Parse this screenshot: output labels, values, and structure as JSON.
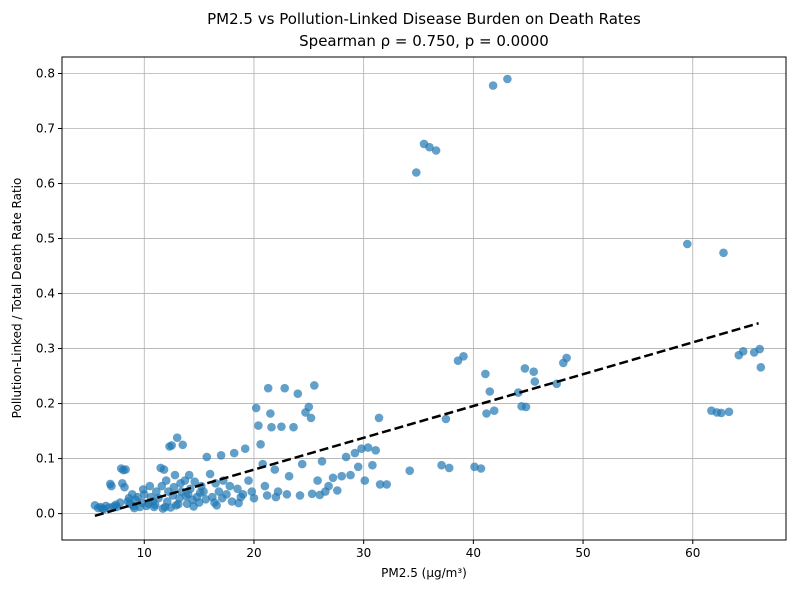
{
  "chart_data": {
    "type": "scatter",
    "title": "PM2.5 vs Pollution-Linked Disease Burden on Death Rates",
    "subtitle": "Spearman ρ = 0.750, p = 0.0000",
    "xlabel": "PM2.5 (µg/m³)",
    "ylabel": "Pollution-Linked / Total Death Rate Ratio",
    "xlim": [
      2.5,
      68.5
    ],
    "ylim": [
      -0.048,
      0.83
    ],
    "xticks": [
      10,
      20,
      30,
      40,
      50,
      60
    ],
    "yticks": [
      0.0,
      0.1,
      0.2,
      0.3,
      0.4,
      0.5,
      0.6,
      0.7,
      0.8
    ],
    "xtick_labels": [
      "10",
      "20",
      "30",
      "40",
      "50",
      "60"
    ],
    "ytick_labels": [
      "0.0",
      "0.1",
      "0.2",
      "0.3",
      "0.4",
      "0.5",
      "0.6",
      "0.7",
      "0.8"
    ],
    "grid": true,
    "point_color": "#1f77b4",
    "trend_color": "#000000",
    "trend_line": {
      "x": [
        5.5,
        66.0
      ],
      "y": [
        -0.004,
        0.346
      ]
    },
    "points": [
      [
        5.5,
        0.015
      ],
      [
        5.8,
        0.01
      ],
      [
        6.0,
        0.012
      ],
      [
        6.3,
        0.008
      ],
      [
        6.5,
        0.014
      ],
      [
        6.8,
        0.011
      ],
      [
        7.0,
        0.05
      ],
      [
        6.9,
        0.054
      ],
      [
        7.2,
        0.013
      ],
      [
        7.5,
        0.012
      ],
      [
        7.8,
        0.02
      ],
      [
        7.9,
        0.082
      ],
      [
        8.1,
        0.079
      ],
      [
        8.3,
        0.08
      ],
      [
        8.0,
        0.055
      ],
      [
        8.2,
        0.048
      ],
      [
        8.5,
        0.022
      ],
      [
        8.7,
        0.018
      ],
      [
        8.9,
        0.035
      ],
      [
        9.0,
        0.014
      ],
      [
        9.2,
        0.025
      ],
      [
        9.4,
        0.03
      ],
      [
        9.6,
        0.012
      ],
      [
        9.8,
        0.02
      ],
      [
        10.0,
        0.035
      ],
      [
        10.2,
        0.014
      ],
      [
        10.4,
        0.018
      ],
      [
        10.6,
        0.03
      ],
      [
        10.8,
        0.022
      ],
      [
        11.0,
        0.016
      ],
      [
        11.1,
        0.04
      ],
      [
        11.3,
        0.028
      ],
      [
        11.5,
        0.083
      ],
      [
        11.6,
        0.05
      ],
      [
        11.8,
        0.08
      ],
      [
        11.9,
        0.012
      ],
      [
        12.0,
        0.06
      ],
      [
        12.1,
        0.022
      ],
      [
        12.3,
        0.122
      ],
      [
        12.5,
        0.124
      ],
      [
        12.6,
        0.033
      ],
      [
        12.7,
        0.048
      ],
      [
        12.8,
        0.07
      ],
      [
        12.9,
        0.015
      ],
      [
        13.0,
        0.138
      ],
      [
        13.2,
        0.028
      ],
      [
        13.4,
        0.04
      ],
      [
        13.5,
        0.125
      ],
      [
        13.7,
        0.06
      ],
      [
        13.9,
        0.018
      ],
      [
        14.0,
        0.035
      ],
      [
        14.2,
        0.045
      ],
      [
        14.4,
        0.025
      ],
      [
        14.6,
        0.058
      ],
      [
        14.8,
        0.03
      ],
      [
        15.0,
        0.02
      ],
      [
        15.2,
        0.05
      ],
      [
        15.4,
        0.04
      ],
      [
        15.7,
        0.103
      ],
      [
        16.0,
        0.072
      ],
      [
        16.2,
        0.03
      ],
      [
        16.5,
        0.055
      ],
      [
        16.8,
        0.04
      ],
      [
        17.0,
        0.106
      ],
      [
        17.2,
        0.06
      ],
      [
        17.5,
        0.035
      ],
      [
        17.8,
        0.05
      ],
      [
        18.2,
        0.11
      ],
      [
        18.5,
        0.045
      ],
      [
        18.8,
        0.03
      ],
      [
        19.2,
        0.118
      ],
      [
        19.5,
        0.06
      ],
      [
        19.8,
        0.04
      ],
      [
        20.2,
        0.192
      ],
      [
        20.4,
        0.16
      ],
      [
        20.6,
        0.126
      ],
      [
        20.8,
        0.09
      ],
      [
        21.0,
        0.05
      ],
      [
        21.3,
        0.228
      ],
      [
        21.5,
        0.182
      ],
      [
        21.6,
        0.157
      ],
      [
        21.9,
        0.08
      ],
      [
        22.2,
        0.04
      ],
      [
        22.5,
        0.158
      ],
      [
        22.8,
        0.228
      ],
      [
        23.2,
        0.068
      ],
      [
        23.6,
        0.157
      ],
      [
        24.0,
        0.218
      ],
      [
        24.4,
        0.09
      ],
      [
        24.7,
        0.184
      ],
      [
        25.0,
        0.194
      ],
      [
        25.2,
        0.174
      ],
      [
        25.5,
        0.233
      ],
      [
        25.8,
        0.06
      ],
      [
        26.2,
        0.095
      ],
      [
        26.5,
        0.04
      ],
      [
        26.8,
        0.05
      ],
      [
        27.2,
        0.065
      ],
      [
        27.6,
        0.042
      ],
      [
        28.0,
        0.068
      ],
      [
        28.4,
        0.103
      ],
      [
        28.8,
        0.07
      ],
      [
        29.2,
        0.11
      ],
      [
        29.5,
        0.085
      ],
      [
        29.8,
        0.118
      ],
      [
        30.1,
        0.06
      ],
      [
        30.4,
        0.12
      ],
      [
        30.8,
        0.088
      ],
      [
        31.1,
        0.115
      ],
      [
        31.4,
        0.174
      ],
      [
        31.5,
        0.053
      ],
      [
        32.1,
        0.053
      ],
      [
        34.2,
        0.078
      ],
      [
        34.8,
        0.62
      ],
      [
        35.5,
        0.672
      ],
      [
        36.0,
        0.666
      ],
      [
        36.6,
        0.66
      ],
      [
        37.1,
        0.088
      ],
      [
        37.5,
        0.172
      ],
      [
        37.8,
        0.083
      ],
      [
        38.6,
        0.278
      ],
      [
        39.1,
        0.286
      ],
      [
        40.1,
        0.085
      ],
      [
        40.7,
        0.082
      ],
      [
        41.1,
        0.254
      ],
      [
        41.2,
        0.182
      ],
      [
        41.5,
        0.222
      ],
      [
        41.9,
        0.187
      ],
      [
        41.8,
        0.778
      ],
      [
        43.1,
        0.79
      ],
      [
        44.1,
        0.22
      ],
      [
        44.4,
        0.195
      ],
      [
        44.7,
        0.264
      ],
      [
        44.8,
        0.194
      ],
      [
        45.5,
        0.258
      ],
      [
        45.6,
        0.24
      ],
      [
        47.6,
        0.236
      ],
      [
        48.2,
        0.274
      ],
      [
        48.5,
        0.283
      ],
      [
        59.5,
        0.49
      ],
      [
        61.7,
        0.187
      ],
      [
        62.2,
        0.184
      ],
      [
        62.6,
        0.183
      ],
      [
        62.8,
        0.474
      ],
      [
        63.3,
        0.185
      ],
      [
        64.2,
        0.288
      ],
      [
        64.6,
        0.295
      ],
      [
        65.6,
        0.293
      ],
      [
        66.1,
        0.299
      ],
      [
        66.2,
        0.266
      ],
      [
        6.2,
        0.009
      ],
      [
        7.4,
        0.016
      ],
      [
        8.6,
        0.028
      ],
      [
        9.1,
        0.01
      ],
      [
        9.9,
        0.044
      ],
      [
        10.9,
        0.012
      ],
      [
        11.7,
        0.009
      ],
      [
        12.4,
        0.011
      ],
      [
        13.1,
        0.017
      ],
      [
        13.8,
        0.032
      ],
      [
        14.5,
        0.013
      ],
      [
        15.1,
        0.038
      ],
      [
        15.6,
        0.026
      ],
      [
        16.4,
        0.02
      ],
      [
        17.1,
        0.028
      ],
      [
        18.0,
        0.022
      ],
      [
        19.0,
        0.035
      ],
      [
        20.0,
        0.028
      ],
      [
        21.2,
        0.033
      ],
      [
        22.0,
        0.03
      ],
      [
        23.0,
        0.035
      ],
      [
        24.2,
        0.033
      ],
      [
        25.3,
        0.036
      ],
      [
        26.0,
        0.034
      ],
      [
        12.2,
        0.04
      ],
      [
        13.3,
        0.055
      ],
      [
        14.1,
        0.07
      ],
      [
        16.6,
        0.015
      ],
      [
        18.6,
        0.019
      ],
      [
        10.5,
        0.05
      ]
    ]
  }
}
